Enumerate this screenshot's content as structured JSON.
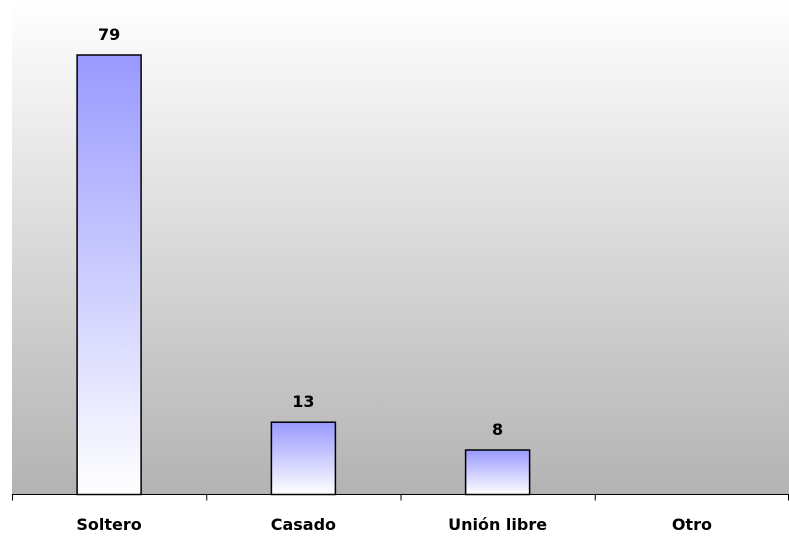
{
  "chart_data": {
    "type": "bar",
    "categories": [
      "Soltero",
      "Casado",
      "Unión libre",
      "Otro"
    ],
    "values": [
      79,
      13,
      8,
      0
    ],
    "data_labels": [
      "79",
      "13",
      "8",
      ""
    ],
    "title": "",
    "xlabel": "",
    "ylabel": "",
    "ylim": [
      0,
      79
    ],
    "grid": false,
    "legend": "none",
    "colors": {
      "bar_top": "#9999ff",
      "bar_bottom": "#ffffff",
      "plot_bg_top": "#ffffff",
      "plot_bg_bottom": "#b3b3b3",
      "bar_stroke": "#000000"
    }
  }
}
